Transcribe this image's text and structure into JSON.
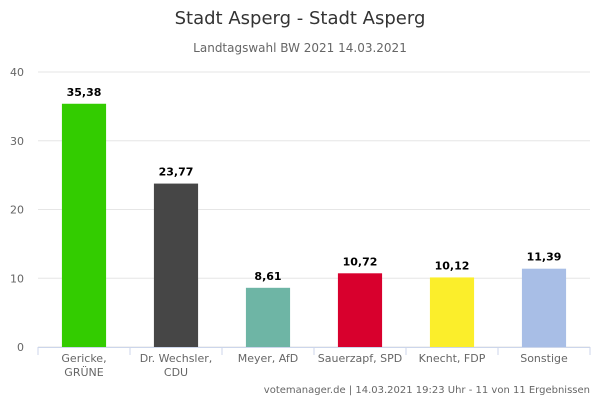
{
  "chart_data": {
    "type": "bar",
    "title": "Stadt Asperg - Stadt Asperg",
    "subtitle": "Landtagswahl BW 2021 14.03.2021",
    "categories": [
      [
        "Gericke,",
        "GRÜNE"
      ],
      [
        "Dr. Wechsler,",
        "CDU"
      ],
      [
        "Meyer, AfD"
      ],
      [
        "Sauerzapf, SPD"
      ],
      [
        "Knecht, FDP"
      ],
      [
        "Sonstige"
      ]
    ],
    "values": [
      35.38,
      23.77,
      8.61,
      10.72,
      10.12,
      11.39
    ],
    "value_labels": [
      "35,38",
      "23,77",
      "8,61",
      "10,72",
      "10,12",
      "11,39"
    ],
    "colors": [
      "#33cc00",
      "#464646",
      "#6eb5a5",
      "#d8002d",
      "#fbee2b",
      "#a8bee6"
    ],
    "ylim": [
      0,
      40
    ],
    "yticks": [
      "0",
      "10",
      "20",
      "30",
      "40"
    ],
    "grid": true,
    "xlabel": "",
    "ylabel": ""
  },
  "footer": "votemanager.de | 14.03.2021 19:23 Uhr - 11 von 11 Ergebnissen"
}
